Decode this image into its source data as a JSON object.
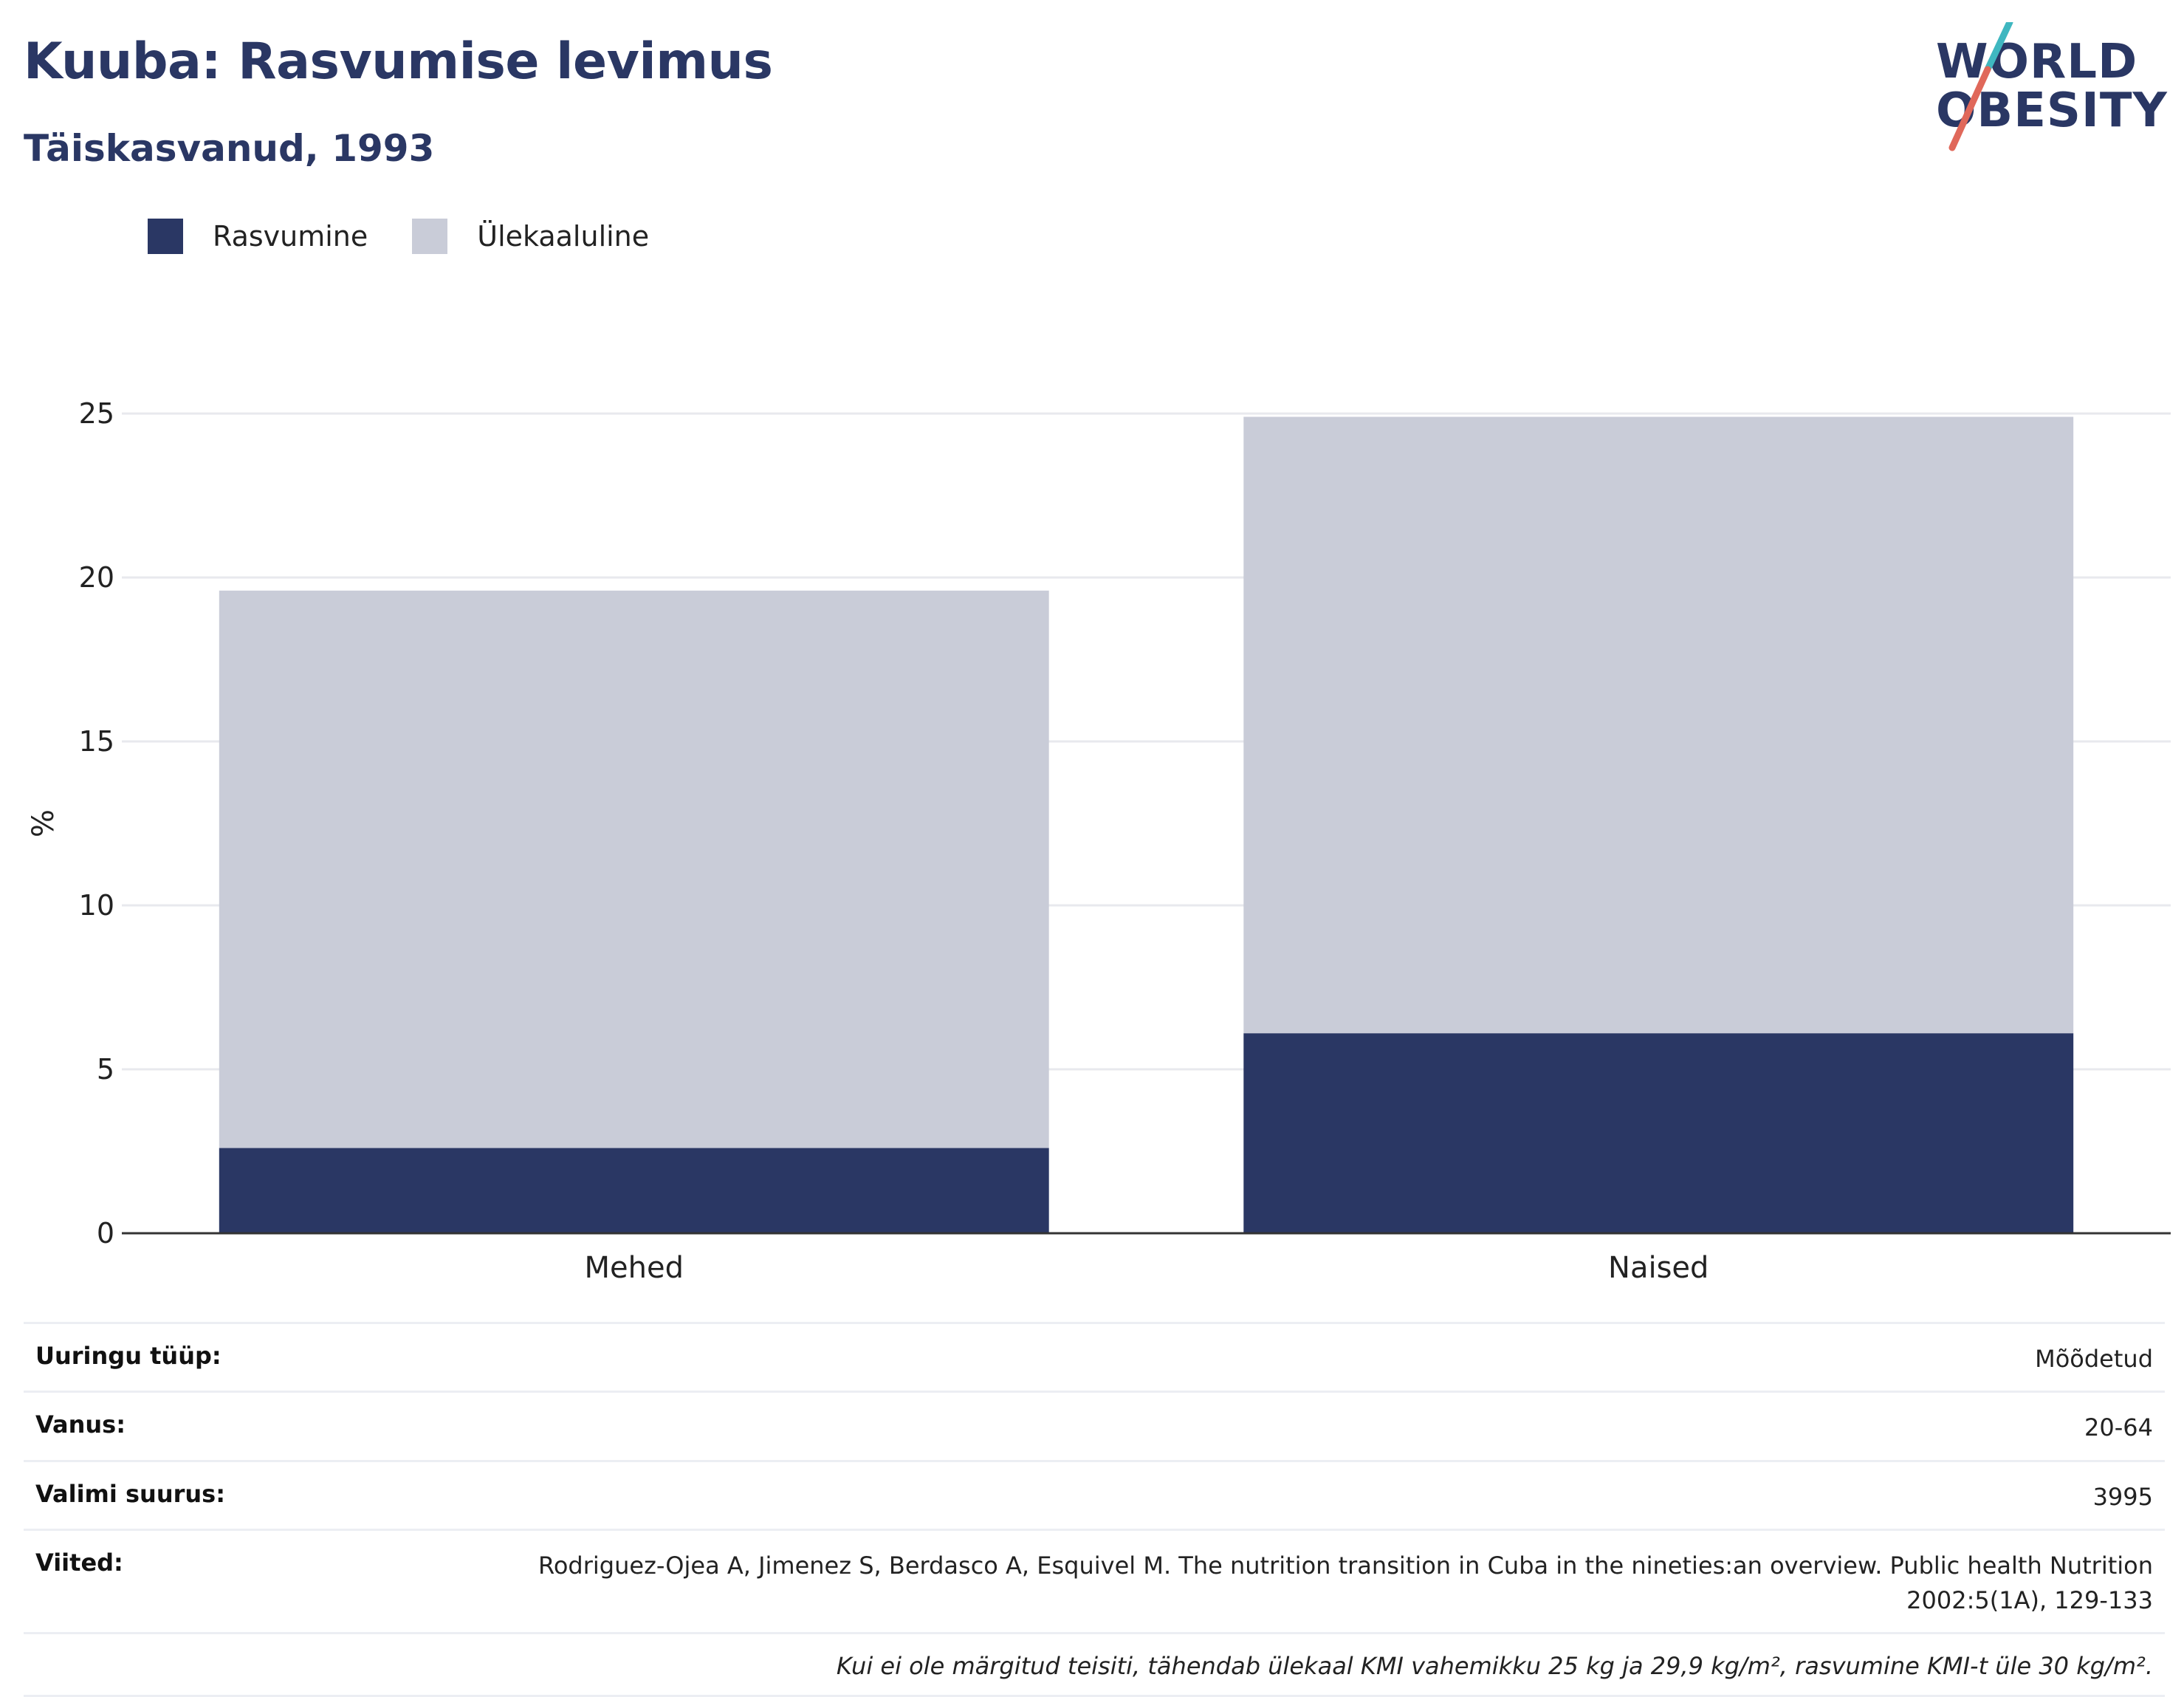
{
  "header": {
    "title": "Kuuba: Rasvumise levimus",
    "subtitle": "Täiskasvanud, 1993"
  },
  "logo": {
    "line1": "WORLD",
    "line2": "OBESITY"
  },
  "legend": [
    {
      "label": "Rasvumine",
      "color": "#2a3764"
    },
    {
      "label": "Ülekaaluline",
      "color": "#c9ccd8"
    }
  ],
  "chart_data": {
    "type": "bar",
    "stacked": true,
    "categories": [
      "Mehed",
      "Naised"
    ],
    "series": [
      {
        "name": "Rasvumine",
        "values": [
          2.6,
          6.1
        ],
        "color": "#2a3764"
      },
      {
        "name": "Ülekaaluline",
        "values": [
          17.0,
          18.8
        ],
        "color": "#c9ccd8"
      }
    ],
    "ylabel": "%",
    "ylim": [
      0,
      25
    ],
    "yticks": [
      0,
      5,
      10,
      15,
      20,
      25
    ],
    "grid": true,
    "legend_position": "top-left"
  },
  "info": {
    "rows": [
      {
        "key": "Uuringu tüüp:",
        "value": "Mõõdetud"
      },
      {
        "key": "Vanus:",
        "value": "20-64"
      },
      {
        "key": "Valimi suurus:",
        "value": "3995"
      },
      {
        "key": "Viited:",
        "value_line1": "Rodriguez-Ojea A, Jimenez S, Berdasco A, Esquivel M. The nutrition transition in Cuba in the nineties:an overview. Public health Nutrition",
        "value_line2": "2002:5(1A), 129-133"
      }
    ],
    "note": "Kui ei ole märgitud teisiti, tähendab ülekaal KMI vahemikku 25 kg ja 29,9 kg/m², rasvumine KMI-t üle 30 kg/m²."
  }
}
